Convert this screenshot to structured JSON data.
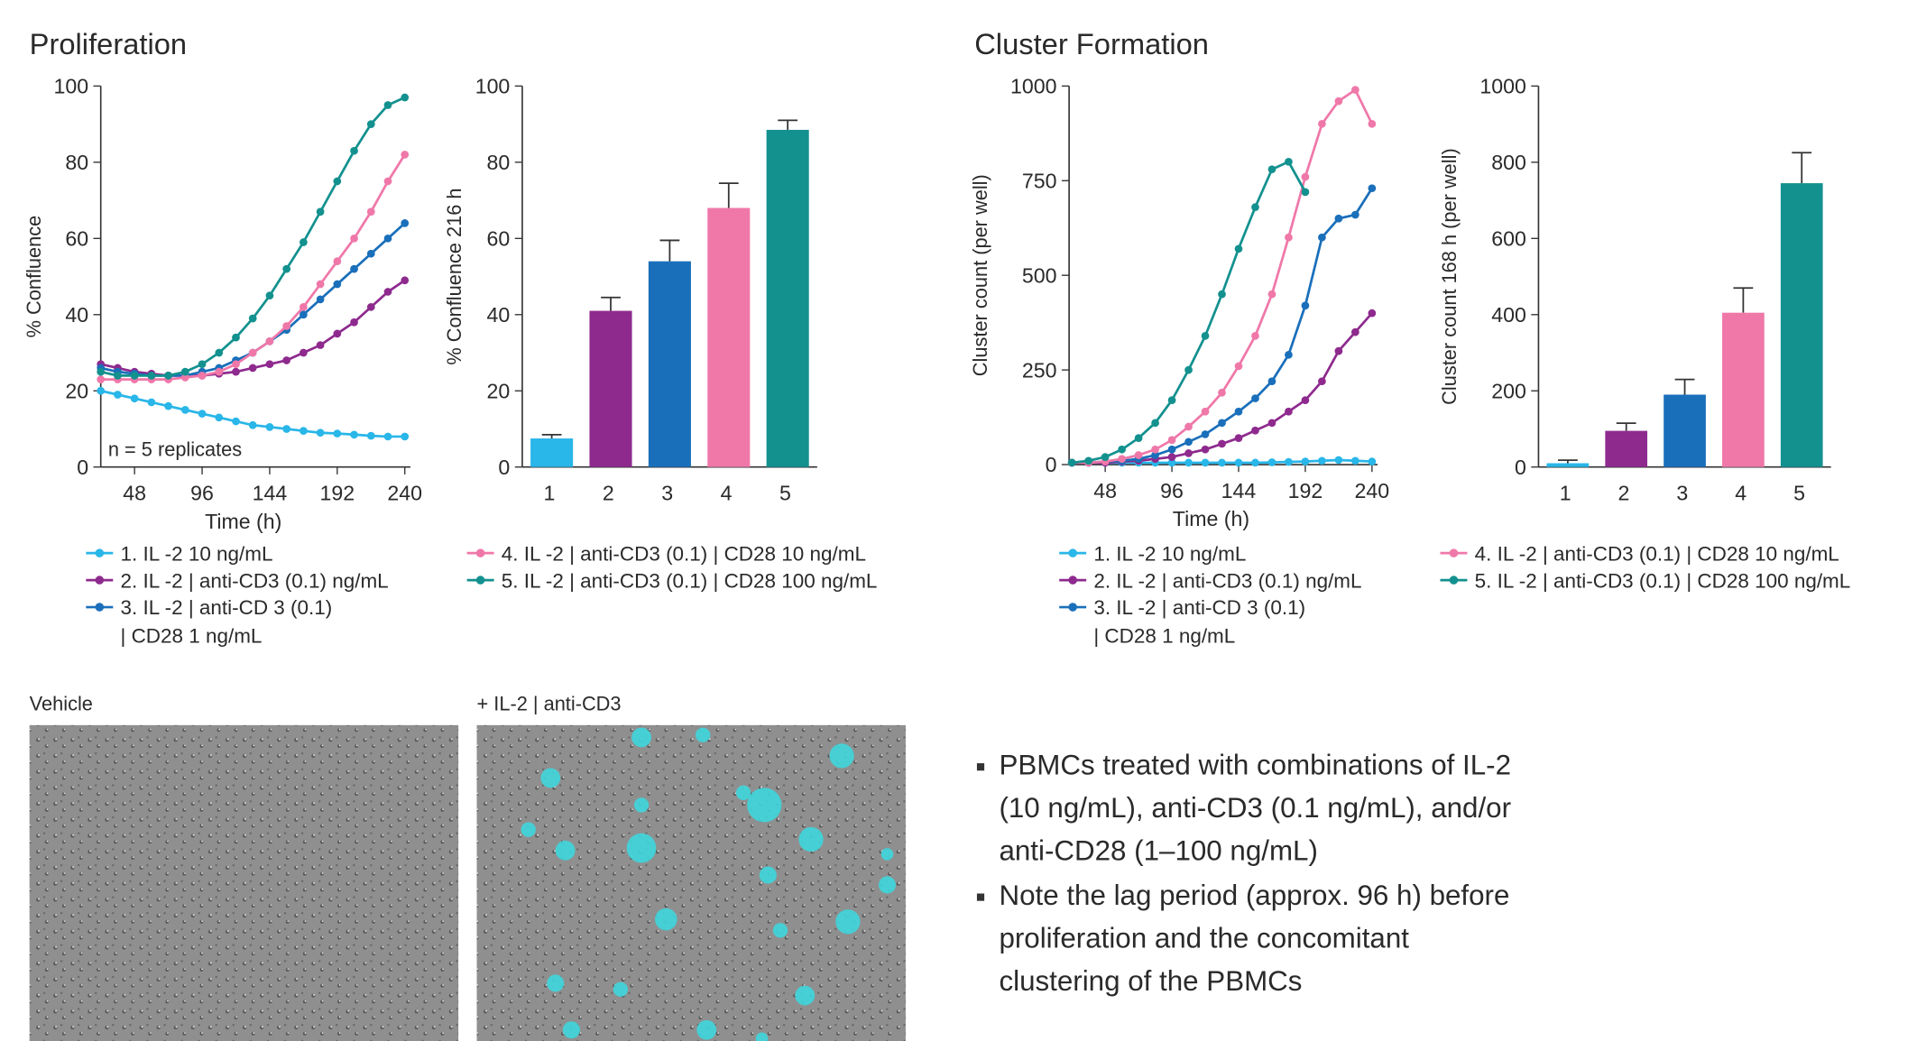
{
  "sections": [
    "Proliferation",
    "Cluster Formation"
  ],
  "chart_data": [
    {
      "type": "line",
      "ylabel": "% Confluence",
      "xlabel": "Time (h)",
      "annotation": "n = 5 replicates",
      "x": [
        24,
        36,
        48,
        60,
        72,
        84,
        96,
        108,
        120,
        132,
        144,
        156,
        168,
        180,
        192,
        204,
        216,
        228,
        240
      ],
      "xlim": [
        24,
        244
      ],
      "xticks": [
        48,
        96,
        144,
        192,
        240
      ],
      "ylim": [
        0,
        100
      ],
      "yticks": [
        0,
        20,
        40,
        60,
        80,
        100
      ],
      "series": [
        {
          "name": "1. IL -2 10 ng/mL",
          "color": "#29b6e8",
          "values": [
            20,
            19,
            18,
            17,
            16,
            15,
            14,
            13,
            12,
            11,
            10.5,
            10,
            9.5,
            9,
            8.8,
            8.5,
            8.2,
            8,
            8
          ]
        },
        {
          "name": "2. IL -2 | anti-CD3 (0.1) ng/mL",
          "color": "#8e2a8e",
          "values": [
            27,
            26,
            25,
            24.5,
            24,
            24,
            24,
            24.5,
            25,
            26,
            27,
            28,
            30,
            32,
            35,
            38,
            42,
            46,
            49
          ]
        },
        {
          "name": "3. IL -2 | anti-CD 3 (0.1)\n| CD28 1 ng/mL",
          "color": "#1a6fba",
          "values": [
            26,
            25,
            24.5,
            24,
            24,
            24,
            25,
            26,
            28,
            30,
            33,
            36,
            40,
            44,
            48,
            52,
            56,
            60,
            64
          ]
        },
        {
          "name": "4. IL -2 | anti-CD3 (0.1) | CD28 10 ng/mL",
          "color": "#ef78a9",
          "values": [
            23,
            23,
            23,
            23,
            23,
            23.5,
            24,
            25,
            27,
            30,
            33,
            37,
            42,
            48,
            54,
            60,
            67,
            75,
            82
          ]
        },
        {
          "name": "5. IL -2 | anti-CD3 (0.1) | CD28 100 ng/mL",
          "color": "#13918f",
          "values": [
            25,
            24,
            24,
            24,
            24,
            25,
            27,
            30,
            34,
            39,
            45,
            52,
            59,
            67,
            75,
            83,
            90,
            95,
            97
          ]
        }
      ]
    },
    {
      "type": "bar",
      "ylabel": "% Confluence 216 h",
      "categories": [
        "1",
        "2",
        "3",
        "4",
        "5"
      ],
      "colors": [
        "#29b6e8",
        "#8e2a8e",
        "#1a6fba",
        "#ef78a9",
        "#13918f"
      ],
      "values": [
        7.5,
        41,
        54,
        68,
        88.5
      ],
      "errors": [
        1,
        3.5,
        5.5,
        6.5,
        2.5
      ],
      "ylim": [
        0,
        100
      ],
      "yticks": [
        0,
        20,
        40,
        60,
        80,
        100
      ]
    },
    {
      "type": "line",
      "ylabel": "Cluster count (per well)",
      "xlabel": "Time (h)",
      "x": [
        24,
        36,
        48,
        60,
        72,
        84,
        96,
        108,
        120,
        132,
        144,
        156,
        168,
        180,
        192,
        204,
        216,
        228,
        240
      ],
      "xlim": [
        22,
        244
      ],
      "xticks": [
        48,
        96,
        144,
        192,
        240
      ],
      "ylim": [
        0,
        1000
      ],
      "yticks": [
        0,
        250,
        500,
        750,
        1000
      ],
      "series": [
        {
          "name": "1. IL -2 10 ng/mL",
          "color": "#29b6e8",
          "values": [
            5,
            5,
            5,
            5,
            5,
            5,
            5,
            5,
            5,
            5,
            5,
            5,
            6,
            7,
            8,
            10,
            12,
            10,
            8
          ]
        },
        {
          "name": "2. IL -2 | anti-CD3 (0.1) ng/mL",
          "color": "#8e2a8e",
          "values": [
            5,
            5,
            5,
            8,
            10,
            15,
            20,
            30,
            40,
            55,
            70,
            90,
            110,
            140,
            170,
            220,
            300,
            350,
            400
          ]
        },
        {
          "name": "3. IL -2 | anti-CD 3 (0.1)\n| CD28 1 ng/mL",
          "color": "#1a6fba",
          "values": [
            5,
            5,
            8,
            10,
            15,
            25,
            40,
            60,
            80,
            110,
            140,
            175,
            220,
            290,
            420,
            600,
            650,
            660,
            730
          ]
        },
        {
          "name": "4. IL -2 | anti-CD3 (0.1) | CD28 10 ng/mL",
          "color": "#ef78a9",
          "values": [
            5,
            5,
            8,
            15,
            25,
            40,
            65,
            100,
            140,
            190,
            260,
            340,
            450,
            600,
            760,
            900,
            960,
            990,
            900
          ]
        },
        {
          "name": "5. IL -2 | anti-CD3 (0.1) | CD28 100 ng/mL",
          "color": "#13918f",
          "values": [
            5,
            10,
            20,
            40,
            70,
            110,
            170,
            250,
            340,
            450,
            570,
            680,
            780,
            800,
            720,
            null,
            null,
            null,
            null
          ]
        }
      ]
    },
    {
      "type": "bar",
      "ylabel": "Cluster count 168 h (per well)",
      "categories": [
        "1",
        "2",
        "3",
        "4",
        "5"
      ],
      "colors": [
        "#29b6e8",
        "#8e2a8e",
        "#1a6fba",
        "#ef78a9",
        "#13918f"
      ],
      "values": [
        10,
        95,
        190,
        405,
        745
      ],
      "errors": [
        8,
        20,
        40,
        65,
        80
      ],
      "ylim": [
        0,
        1000
      ],
      "yticks": [
        0,
        200,
        400,
        600,
        800,
        1000
      ]
    }
  ],
  "images": [
    {
      "label": "Vehicle"
    },
    {
      "label": "+ IL-2 | anti-CD3"
    }
  ],
  "bullets": [
    "PBMCs treated with combinations of IL-2\n(10 ng/mL), anti-CD3 (0.1 ng/mL), and/or\nanti-CD28 (1–100 ng/mL)",
    "Note the lag period (approx. 96 h) before\nproliferation and the concomitant\nclustering of the PBMCs"
  ]
}
